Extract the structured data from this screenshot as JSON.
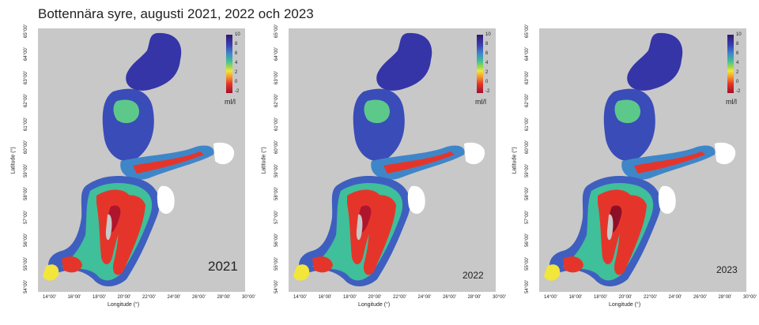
{
  "title": "Bottennära syre, augusti 2021, 2022 och 2023",
  "axes": {
    "xlabel": "Longitude (°)",
    "ylabel": "Latitude (°)",
    "xticks": [
      "14°00'",
      "16°00'",
      "18°00'",
      "20°00'",
      "22°00'",
      "24°00'",
      "26°00'",
      "28°00'",
      "30°00'"
    ],
    "yticks": [
      "54°00'",
      "55°00'",
      "56°00'",
      "57°00'",
      "58°00'",
      "59°00'",
      "60°00'",
      "61°00'",
      "62°00'",
      "63°00'",
      "64°00'",
      "65°00'"
    ]
  },
  "colorbar": {
    "ticks": [
      "10",
      "8",
      "6",
      "4",
      "2",
      "0",
      "-2"
    ],
    "unit": "ml/l",
    "colors": [
      "#30186e",
      "#3b3fb5",
      "#3f86c9",
      "#3fbf9a",
      "#9fd74a",
      "#f2e63a",
      "#f59a2a",
      "#e5352a",
      "#a0102a"
    ]
  },
  "panels": [
    {
      "year": "2021"
    },
    {
      "year": "2022"
    },
    {
      "year": "2023"
    }
  ],
  "colors": {
    "land": "#c8c8c8",
    "no_data": "#ffffff"
  }
}
